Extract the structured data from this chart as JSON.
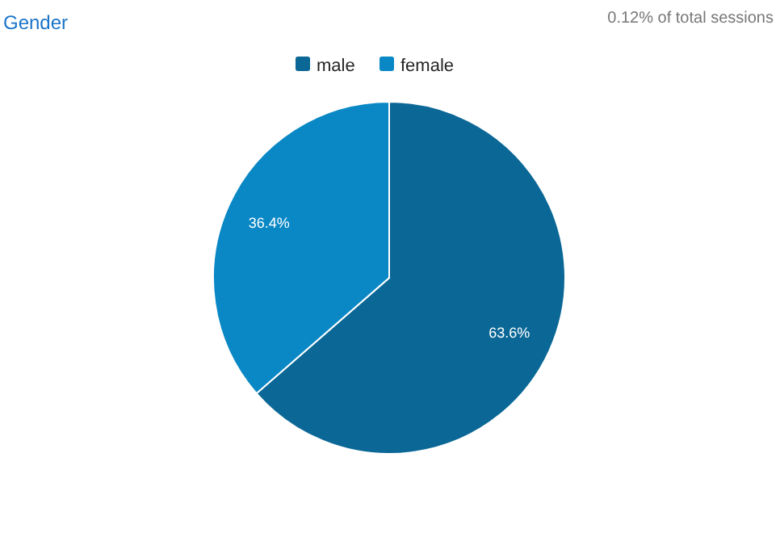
{
  "chart_data": {
    "type": "pie",
    "title": "Gender",
    "annotations": [
      "0.12% of total sessions"
    ],
    "categories": [
      "male",
      "female"
    ],
    "values": [
      63.6,
      36.4
    ],
    "colors": [
      "#0b6896",
      "#0a88c5"
    ],
    "value_labels": [
      "63.6%",
      "36.4%"
    ],
    "legend": "top"
  }
}
